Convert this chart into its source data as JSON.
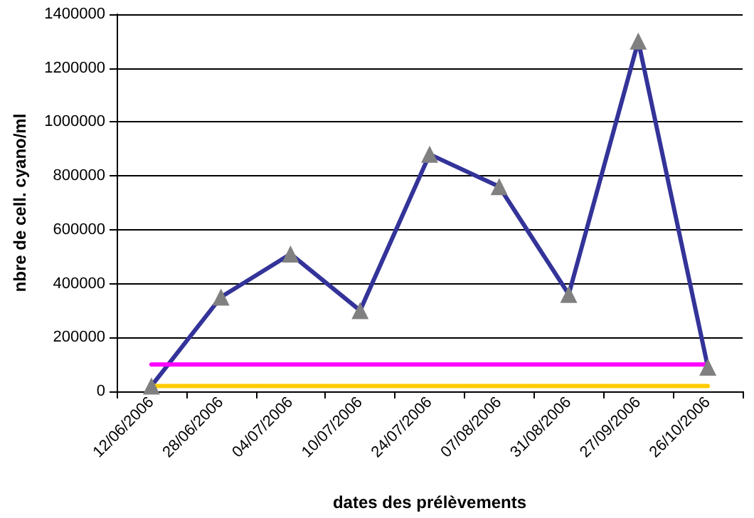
{
  "chart_data": {
    "type": "line",
    "xlabel": "dates des prélèvements",
    "ylabel": "nbre de cell. cyano/ml",
    "categories": [
      "12/06/2006",
      "28/06/2006",
      "04/07/2006",
      "10/07/2006",
      "24/07/2006",
      "07/08/2006",
      "31/08/2006",
      "27/09/2006",
      "26/10/2006"
    ],
    "series": [
      {
        "color": "#333399",
        "marker": "triangle",
        "values": [
          20000,
          350000,
          510000,
          300000,
          880000,
          760000,
          360000,
          1300000,
          90000
        ]
      },
      {
        "color": "#ff00ff",
        "marker": "none",
        "values": [
          100000,
          100000,
          100000,
          100000,
          100000,
          100000,
          100000,
          100000,
          100000
        ]
      },
      {
        "color": "#ffcc00",
        "marker": "none",
        "values": [
          20000,
          20000,
          20000,
          20000,
          20000,
          20000,
          20000,
          20000,
          20000
        ]
      }
    ],
    "ylim": [
      0,
      1400000
    ],
    "yticks": [
      0,
      200000,
      400000,
      600000,
      800000,
      1000000,
      1200000,
      1400000
    ],
    "grid": "y",
    "line_style": "solid"
  }
}
